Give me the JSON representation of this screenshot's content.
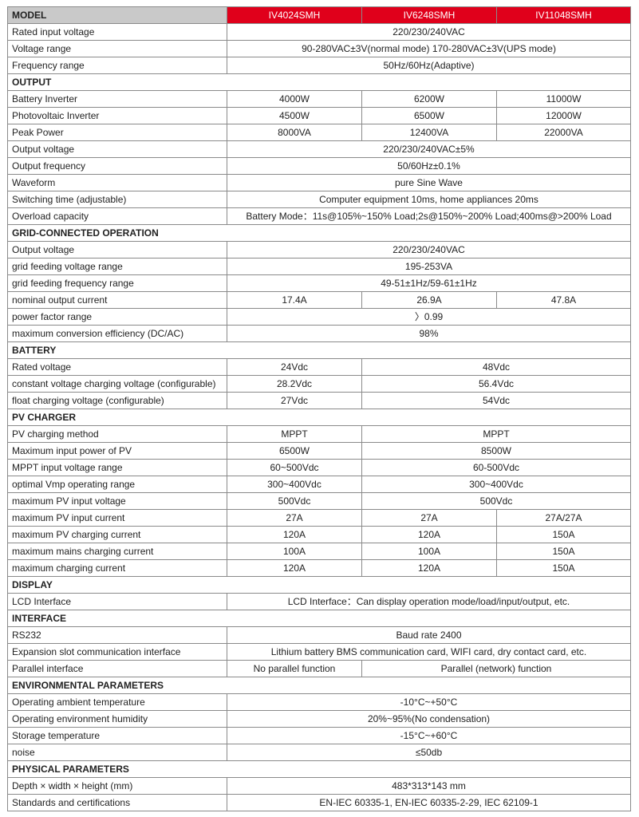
{
  "header": {
    "label": "MODEL",
    "models": [
      "IV4024SMH",
      "IV6248SMH",
      "IV11048SMH"
    ]
  },
  "accent_color": "#e0001b",
  "rows": [
    {
      "label": "Rated input voltage",
      "cells": [
        "220/230/240VAC"
      ]
    },
    {
      "label": "Voltage range",
      "cells": [
        "90-280VAC±3V(normal mode)  170-280VAC±3V(UPS mode)"
      ]
    },
    {
      "label": "Frequency range",
      "cells": [
        "50Hz/60Hz(Adaptive)"
      ]
    },
    {
      "section": "OUTPUT"
    },
    {
      "label": "Battery Inverter",
      "cells": [
        "4000W",
        "6200W",
        "11000W"
      ]
    },
    {
      "label": "Photovoltaic Inverter",
      "cells": [
        "4500W",
        "6500W",
        "12000W"
      ]
    },
    {
      "label": "Peak Power",
      "cells": [
        "8000VA",
        "12400VA",
        "22000VA"
      ]
    },
    {
      "label": "Output voltage",
      "cells": [
        "220/230/240VAC±5%"
      ]
    },
    {
      "label": "Output frequency",
      "cells": [
        "50/60Hz±0.1%"
      ]
    },
    {
      "label": "Waveform",
      "cells": [
        "pure Sine Wave"
      ]
    },
    {
      "label": "Switching time (adjustable)",
      "cells": [
        "Computer equipment 10ms, home appliances 20ms"
      ]
    },
    {
      "label": "Overload capacity",
      "cells": [
        "Battery Mode：11s@105%~150% Load;2s@150%~200% Load;400ms@>200% Load"
      ]
    },
    {
      "section": "GRID-CONNECTED OPERATION"
    },
    {
      "label": "Output voltage",
      "cells": [
        "220/230/240VAC"
      ]
    },
    {
      "label": "grid feeding voltage range",
      "cells": [
        "195-253VA"
      ]
    },
    {
      "label": "grid feeding frequency range",
      "cells": [
        "49-51±1Hz/59-61±1Hz"
      ]
    },
    {
      "label": "nominal output current",
      "cells": [
        "17.4A",
        "26.9A",
        "47.8A"
      ]
    },
    {
      "label": "power factor range",
      "cells": [
        "〉0.99"
      ]
    },
    {
      "label": "maximum conversion efficiency (DC/AC)",
      "cells": [
        "98%"
      ]
    },
    {
      "section": "BATTERY"
    },
    {
      "label": "Rated voltage",
      "cells": [
        "24Vdc",
        "48Vdc"
      ]
    },
    {
      "label": "constant voltage charging voltage (configurable)",
      "cells": [
        "28.2Vdc",
        "56.4Vdc"
      ]
    },
    {
      "label": "float charging voltage (configurable)",
      "cells": [
        "27Vdc",
        "54Vdc"
      ]
    },
    {
      "section": "PV CHARGER"
    },
    {
      "label": "PV charging method",
      "cells": [
        "MPPT",
        "MPPT"
      ]
    },
    {
      "label": "Maximum input power of PV",
      "cells": [
        "6500W",
        "8500W"
      ]
    },
    {
      "label": "MPPT input voltage range",
      "cells": [
        "60~500Vdc",
        "60-500Vdc"
      ]
    },
    {
      "label": "optimal Vmp operating range",
      "cells": [
        "300~400Vdc",
        "300~400Vdc"
      ]
    },
    {
      "label": "maximum PV input voltage",
      "cells": [
        "500Vdc",
        "500Vdc"
      ]
    },
    {
      "label": "maximum PV input current",
      "cells": [
        "27A",
        "27A",
        "27A/27A"
      ]
    },
    {
      "label": "maximum PV charging current",
      "cells": [
        "120A",
        "120A",
        "150A"
      ]
    },
    {
      "label": "maximum mains charging current",
      "cells": [
        "100A",
        "100A",
        "150A"
      ]
    },
    {
      "label": "maximum charging current",
      "cells": [
        "120A",
        "120A",
        "150A"
      ]
    },
    {
      "section": "DISPLAY"
    },
    {
      "label": "LCD Interface",
      "cells": [
        "LCD Interface：Can display operation mode/load/input/output, etc."
      ]
    },
    {
      "section": "INTERFACE"
    },
    {
      "label": "RS232",
      "cells": [
        "Baud rate 2400"
      ]
    },
    {
      "label": "Expansion slot communication interface",
      "cells": [
        "Lithium battery BMS communication card, WIFI card, dry contact card, etc."
      ]
    },
    {
      "label": "Parallel interface",
      "cells": [
        "No parallel function",
        "Parallel (network) function"
      ]
    },
    {
      "section": "ENVIRONMENTAL PARAMETERS"
    },
    {
      "label": "Operating ambient temperature",
      "cells": [
        "-10°C~+50°C"
      ]
    },
    {
      "label": "Operating environment humidity",
      "cells": [
        "20%~95%(No condensation)"
      ]
    },
    {
      "label": "Storage temperature",
      "cells": [
        "-15°C~+60°C"
      ]
    },
    {
      "label": "noise",
      "cells": [
        "≤50db"
      ]
    },
    {
      "section": "PHYSICAL PARAMETERS"
    },
    {
      "label": "Depth × width × height (mm)",
      "cells": [
        "483*313*143  mm"
      ]
    },
    {
      "label": "Standards and certifications",
      "cells": [
        "EN-IEC 60335-1, EN-IEC 60335-2-29, IEC 62109-1"
      ]
    }
  ]
}
